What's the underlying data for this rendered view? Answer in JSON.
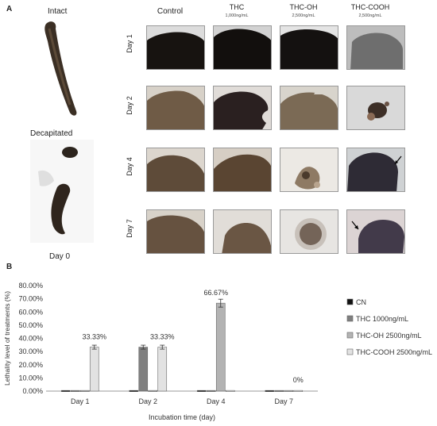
{
  "panelA": {
    "label": "A",
    "left": {
      "intact": "Intact",
      "decapitated": "Decapitated",
      "day0": "Day 0"
    },
    "columns": [
      {
        "name": "Control",
        "dose": ""
      },
      {
        "name": "THC",
        "dose": "1,000ng/mL"
      },
      {
        "name": "THC-OH",
        "dose": "2,500ng/mL"
      },
      {
        "name": "THC-COOH",
        "dose": "2,500ng/mL"
      }
    ],
    "rows": [
      "Day 1",
      "Day 2",
      "Day 4",
      "Day 7"
    ],
    "colors": {
      "dark_tissue": "#1a1614",
      "brown_tissue": "#5b4a38",
      "background": "#e6e6e6"
    }
  },
  "panelB": {
    "label": "B"
  },
  "chart_data": {
    "type": "bar",
    "categories": [
      "Day 1",
      "Day 2",
      "Day 4",
      "Day 7"
    ],
    "series": [
      {
        "name": "CN",
        "values": [
          0.5,
          0.5,
          0.5,
          0.5
        ],
        "color": "#111111"
      },
      {
        "name": "THC 1000ng/mL",
        "values": [
          0.5,
          33.33,
          0.5,
          0.5
        ],
        "color": "#7f7f7f"
      },
      {
        "name": "THC-OH 2500ng/mL",
        "values": [
          0.5,
          0.5,
          66.67,
          0.5
        ],
        "color": "#b3b3b3"
      },
      {
        "name": "THC-COOH 2500ng/mL",
        "values": [
          33.33,
          33.33,
          0.5,
          0.5
        ],
        "color": "#e2e2e2"
      }
    ],
    "data_labels": [
      {
        "category": "Day 1",
        "text": "33.33%"
      },
      {
        "category": "Day 2",
        "text": "33.33%"
      },
      {
        "category": "Day 4",
        "text": "66.67%"
      },
      {
        "category": "Day 7",
        "text": "0%"
      }
    ],
    "yticks": [
      "0.00%",
      "10.00%",
      "20.00%",
      "30.00%",
      "40.00%",
      "50.00%",
      "60.00%",
      "70.00%",
      "80.00%"
    ],
    "ylim": [
      0,
      80
    ],
    "xlabel": "Incubation time (day)",
    "ylabel": "Lethality level of treatments (%)",
    "legend_position": "right",
    "error_bars": true
  }
}
